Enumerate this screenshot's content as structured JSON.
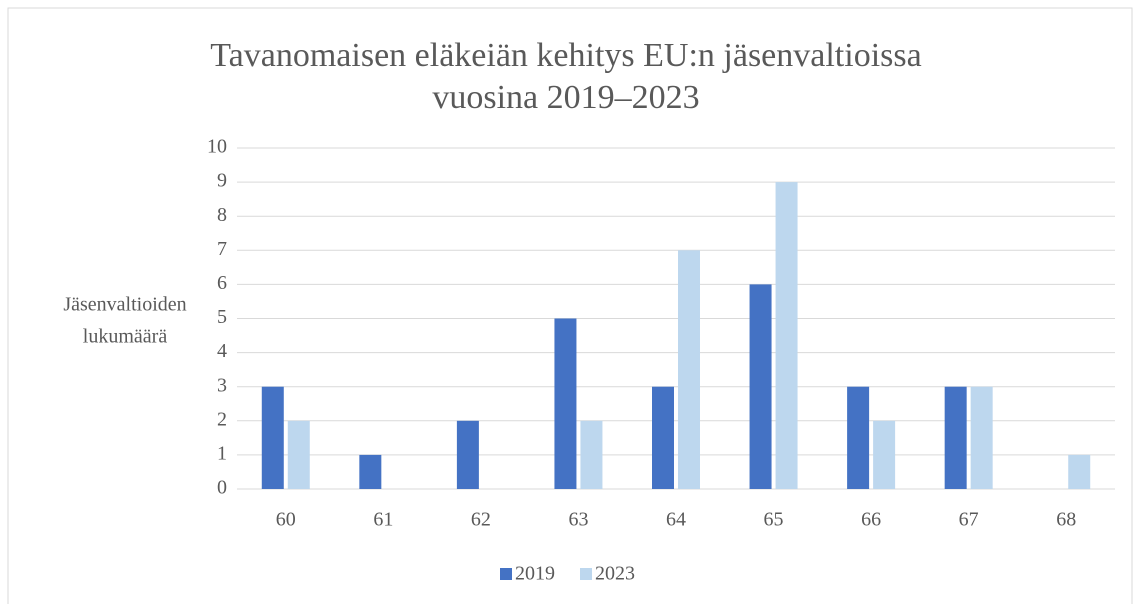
{
  "chart_data": {
    "type": "bar",
    "title": [
      "Tavanomaisen eläkeiän kehitys EU:n jäsenvaltioissa",
      "vuosina 2019–2023"
    ],
    "y_label": [
      "Jäsenvaltioiden",
      "lukumäärä"
    ],
    "categories": [
      "60",
      "61",
      "62",
      "63",
      "64",
      "65",
      "66",
      "67",
      "68"
    ],
    "series": [
      {
        "name": "2019",
        "color": "#4472c4",
        "values": [
          3,
          1,
          2,
          5,
          3,
          6,
          3,
          3,
          0
        ]
      },
      {
        "name": "2023",
        "color": "#bdd7ee",
        "values": [
          2,
          0,
          0,
          2,
          7,
          9,
          2,
          3,
          1
        ]
      }
    ],
    "ylim": [
      0,
      10
    ],
    "yticks": [
      0,
      1,
      2,
      3,
      4,
      5,
      6,
      7,
      8,
      9,
      10
    ],
    "grid": true,
    "legend": "bottom"
  }
}
